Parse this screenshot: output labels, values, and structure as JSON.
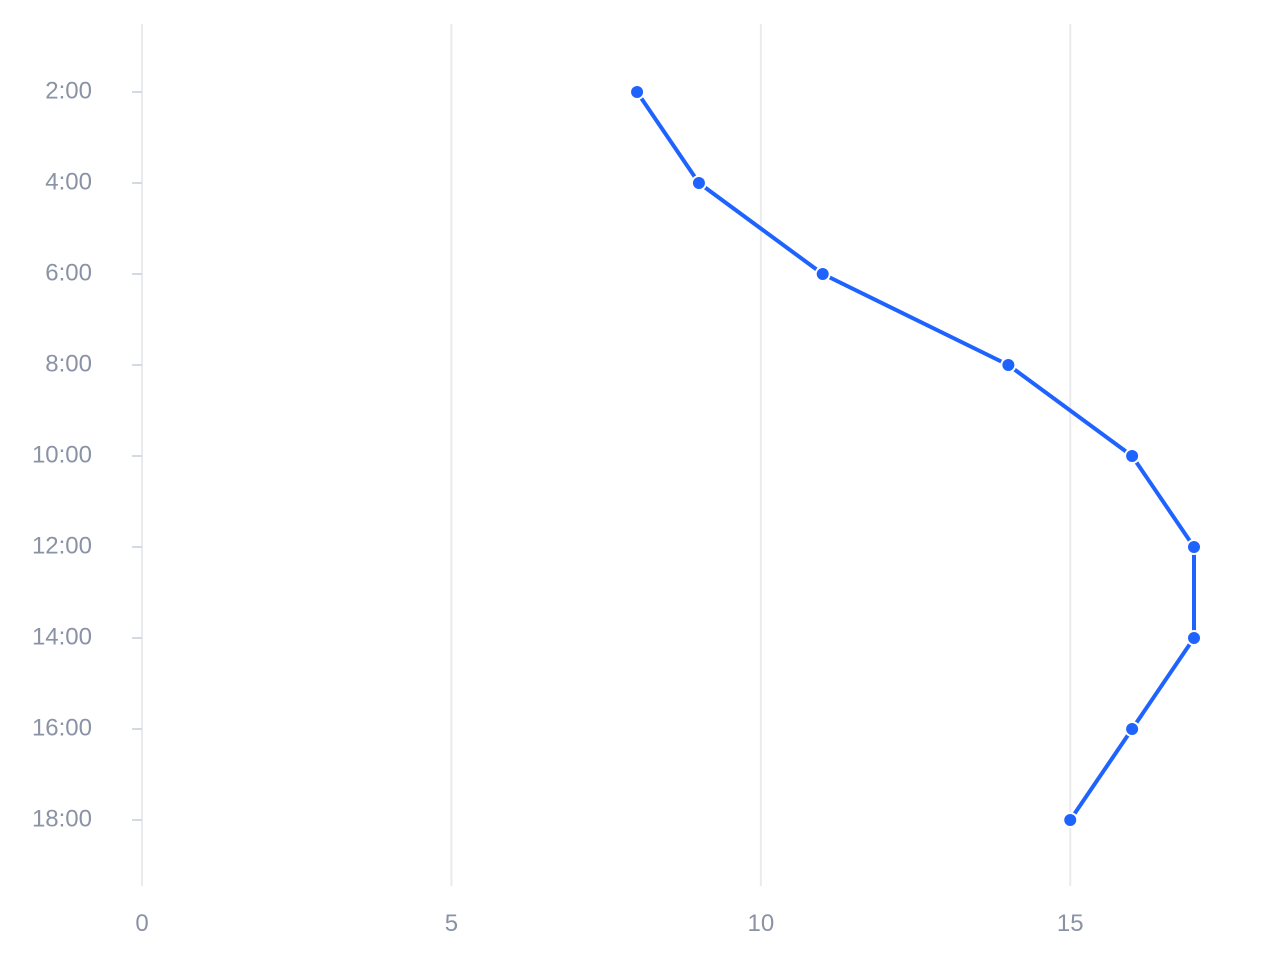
{
  "chart_data": {
    "type": "line",
    "orientation": "vertical",
    "title": "",
    "xlabel": "",
    "ylabel": "",
    "categories": [
      "2:00",
      "4:00",
      "6:00",
      "8:00",
      "10:00",
      "12:00",
      "14:00",
      "16:00",
      "18:00"
    ],
    "series": [
      {
        "values": [
          8,
          9,
          11,
          14,
          16,
          17,
          17,
          16,
          15
        ]
      }
    ],
    "x_ticks": [
      0,
      5,
      10,
      15
    ],
    "xlim": [
      0,
      17
    ],
    "grid": "vertical",
    "legend": "none",
    "colors": {
      "series": "#1f63ff",
      "grid": "#e8eaee",
      "tick_text": "#8a93a5",
      "tick_mark": "#d5d9e0",
      "marker_stroke": "#ffffff"
    }
  }
}
